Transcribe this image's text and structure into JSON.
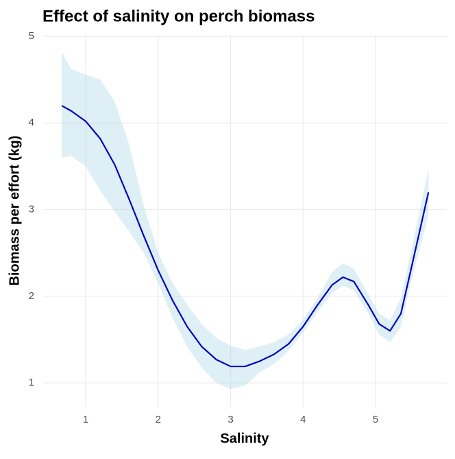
{
  "chart_data": {
    "type": "line",
    "title": "Effect of salinity on perch biomass",
    "x_label": "Salinity",
    "y_label": "Biomass per effort (kg)",
    "x": [
      0.67,
      0.8,
      1.0,
      1.2,
      1.4,
      1.6,
      1.8,
      2.0,
      2.2,
      2.4,
      2.6,
      2.8,
      3.0,
      3.2,
      3.4,
      3.6,
      3.8,
      4.0,
      4.2,
      4.4,
      4.55,
      4.7,
      4.9,
      5.05,
      5.2,
      5.35,
      5.5,
      5.73
    ],
    "values": [
      4.2,
      4.14,
      4.02,
      3.82,
      3.52,
      3.12,
      2.7,
      2.3,
      1.95,
      1.65,
      1.42,
      1.27,
      1.19,
      1.19,
      1.25,
      1.33,
      1.45,
      1.65,
      1.9,
      2.13,
      2.22,
      2.17,
      1.9,
      1.68,
      1.6,
      1.8,
      2.35,
      3.2
    ],
    "lower": [
      3.6,
      3.62,
      3.5,
      3.22,
      2.98,
      2.75,
      2.5,
      2.15,
      1.75,
      1.42,
      1.18,
      1.0,
      0.93,
      0.97,
      1.12,
      1.22,
      1.37,
      1.58,
      1.82,
      2.04,
      2.12,
      2.07,
      1.8,
      1.56,
      1.47,
      1.65,
      2.2,
      2.93
    ],
    "upper": [
      4.82,
      4.62,
      4.56,
      4.5,
      4.25,
      3.75,
      3.05,
      2.5,
      2.15,
      1.9,
      1.68,
      1.52,
      1.43,
      1.38,
      1.42,
      1.47,
      1.56,
      1.73,
      1.98,
      2.28,
      2.38,
      2.32,
      2.02,
      1.8,
      1.72,
      1.98,
      2.55,
      3.47
    ],
    "color": "#0000c0",
    "band_color": "#add8e6",
    "xlim": [
      0.42,
      5.98
    ],
    "ylim": [
      0.72,
      5.02
    ],
    "xticks": [
      1,
      2,
      3,
      4,
      5
    ],
    "yticks": [
      1,
      2,
      3,
      4,
      5
    ],
    "grid": true
  }
}
